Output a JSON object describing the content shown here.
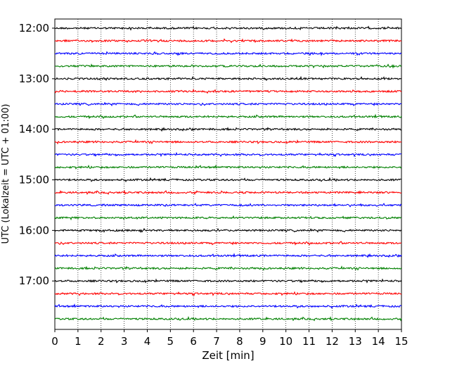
{
  "chart_data": {
    "type": "line",
    "title": "",
    "xlabel": "Zeit  [min]",
    "ylabel": "UTC (Lokalzeit = UTC + 01:00)",
    "xlim": [
      0,
      15
    ],
    "x_ticks": [
      0,
      1,
      2,
      3,
      4,
      5,
      6,
      7,
      8,
      9,
      10,
      11,
      12,
      13,
      14,
      15
    ],
    "x_grid": true,
    "y_ticks": [
      "12:00",
      "13:00",
      "14:00",
      "15:00",
      "16:00",
      "17:00"
    ],
    "trace_start": "12:00",
    "trace_interval_minutes": 15,
    "trace_count": 24,
    "trace_color_cycle": [
      "#000000",
      "#ff0000",
      "#0000ff",
      "#008000"
    ]
  }
}
